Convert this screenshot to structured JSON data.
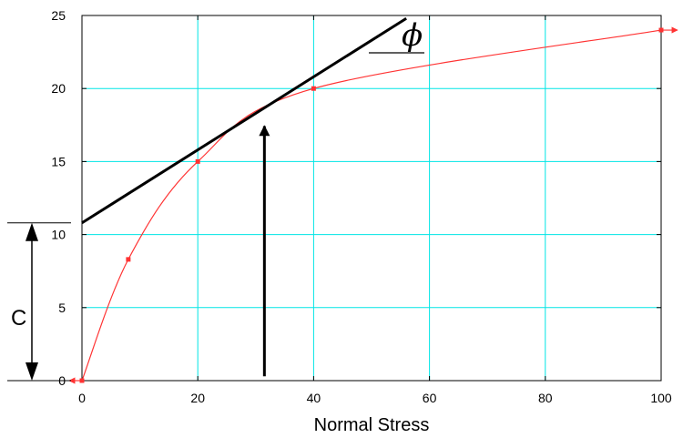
{
  "chart_data": {
    "type": "line",
    "title": "",
    "xlabel": "Normal Stress",
    "ylabel": "",
    "xlim": [
      0,
      100
    ],
    "ylim": [
      0,
      25
    ],
    "x_ticks": [
      0,
      20,
      40,
      60,
      80,
      100
    ],
    "y_ticks": [
      0,
      5,
      10,
      15,
      20,
      25
    ],
    "grid": true,
    "grid_color": "#00e5e5",
    "series": [
      {
        "color": "#ff3333",
        "points": [
          [
            0,
            0
          ],
          [
            8,
            8.3
          ],
          [
            20,
            15
          ],
          [
            40,
            20
          ],
          [
            100,
            24
          ]
        ]
      }
    ],
    "tangent_line": {
      "color": "#000000",
      "points": [
        [
          0,
          10.8
        ],
        [
          56,
          24.8
        ]
      ]
    },
    "annotations": {
      "cohesion_label": "C",
      "cohesion_value": 10.8,
      "friction_angle_label": "ϕ",
      "arrow_x": 31.5,
      "arrow_y_range": [
        0.3,
        17.8
      ]
    }
  }
}
